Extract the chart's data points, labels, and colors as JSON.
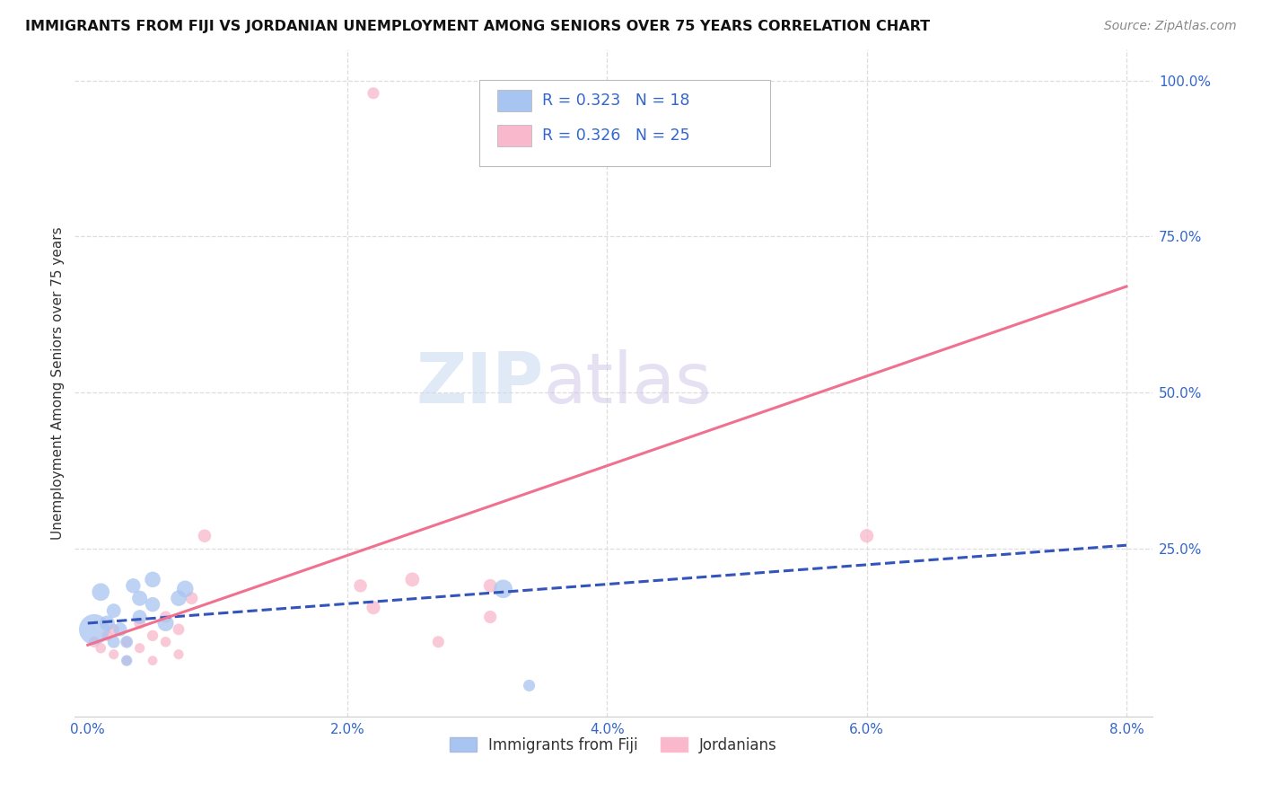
{
  "title": "IMMIGRANTS FROM FIJI VS JORDANIAN UNEMPLOYMENT AMONG SENIORS OVER 75 YEARS CORRELATION CHART",
  "source": "Source: ZipAtlas.com",
  "ylabel": "Unemployment Among Seniors over 75 years",
  "x_tick_labels": [
    "0.0%",
    "",
    "2.0%",
    "",
    "4.0%",
    "",
    "6.0%",
    "",
    "8.0%"
  ],
  "x_tick_vals": [
    0.0,
    0.01,
    0.02,
    0.03,
    0.04,
    0.05,
    0.06,
    0.07,
    0.08
  ],
  "y_tick_labels": [
    "25.0%",
    "50.0%",
    "75.0%",
    "100.0%"
  ],
  "y_tick_vals": [
    0.25,
    0.5,
    0.75,
    1.0
  ],
  "xlim": [
    -0.001,
    0.082
  ],
  "ylim": [
    -0.02,
    1.05
  ],
  "fiji_R": 0.323,
  "fiji_N": 18,
  "jordan_R": 0.326,
  "jordan_N": 25,
  "fiji_color": "#a8c4f0",
  "jordan_color": "#f9b8cc",
  "fiji_line_color": "#3355bb",
  "jordan_line_color": "#f07090",
  "fiji_x": [
    0.0005,
    0.001,
    0.0015,
    0.002,
    0.002,
    0.0025,
    0.003,
    0.003,
    0.0035,
    0.004,
    0.004,
    0.005,
    0.005,
    0.006,
    0.007,
    0.0075,
    0.032,
    0.034
  ],
  "fiji_y": [
    0.12,
    0.18,
    0.13,
    0.15,
    0.1,
    0.12,
    0.1,
    0.07,
    0.19,
    0.17,
    0.14,
    0.2,
    0.16,
    0.13,
    0.17,
    0.185,
    0.185,
    0.03
  ],
  "fiji_size": [
    600,
    200,
    150,
    130,
    100,
    120,
    100,
    80,
    140,
    150,
    130,
    160,
    140,
    170,
    160,
    180,
    220,
    90
  ],
  "jordan_x": [
    0.0005,
    0.001,
    0.0015,
    0.002,
    0.002,
    0.003,
    0.003,
    0.004,
    0.004,
    0.005,
    0.005,
    0.006,
    0.006,
    0.007,
    0.007,
    0.008,
    0.009,
    0.021,
    0.022,
    0.025,
    0.027,
    0.031,
    0.031,
    0.06,
    0.022
  ],
  "jordan_y": [
    0.1,
    0.09,
    0.11,
    0.08,
    0.12,
    0.1,
    0.07,
    0.13,
    0.09,
    0.11,
    0.07,
    0.14,
    0.1,
    0.12,
    0.08,
    0.17,
    0.27,
    0.19,
    0.155,
    0.2,
    0.1,
    0.14,
    0.19,
    0.27,
    0.98
  ],
  "jordan_size": [
    80,
    70,
    75,
    65,
    80,
    70,
    60,
    85,
    65,
    80,
    60,
    90,
    70,
    85,
    65,
    100,
    110,
    110,
    120,
    130,
    90,
    105,
    115,
    120,
    90
  ],
  "fiji_line_x": [
    0.0,
    0.08
  ],
  "fiji_line_y": [
    0.13,
    0.255
  ],
  "jordan_line_x": [
    0.0,
    0.08
  ],
  "jordan_line_y": [
    0.095,
    0.67
  ],
  "legend_fiji_label": "Immigrants from Fiji",
  "legend_jordan_label": "Jordanians",
  "watermark_zip": "ZIP",
  "watermark_atlas": "atlas",
  "background_color": "#ffffff",
  "grid_color": "#dddddd"
}
